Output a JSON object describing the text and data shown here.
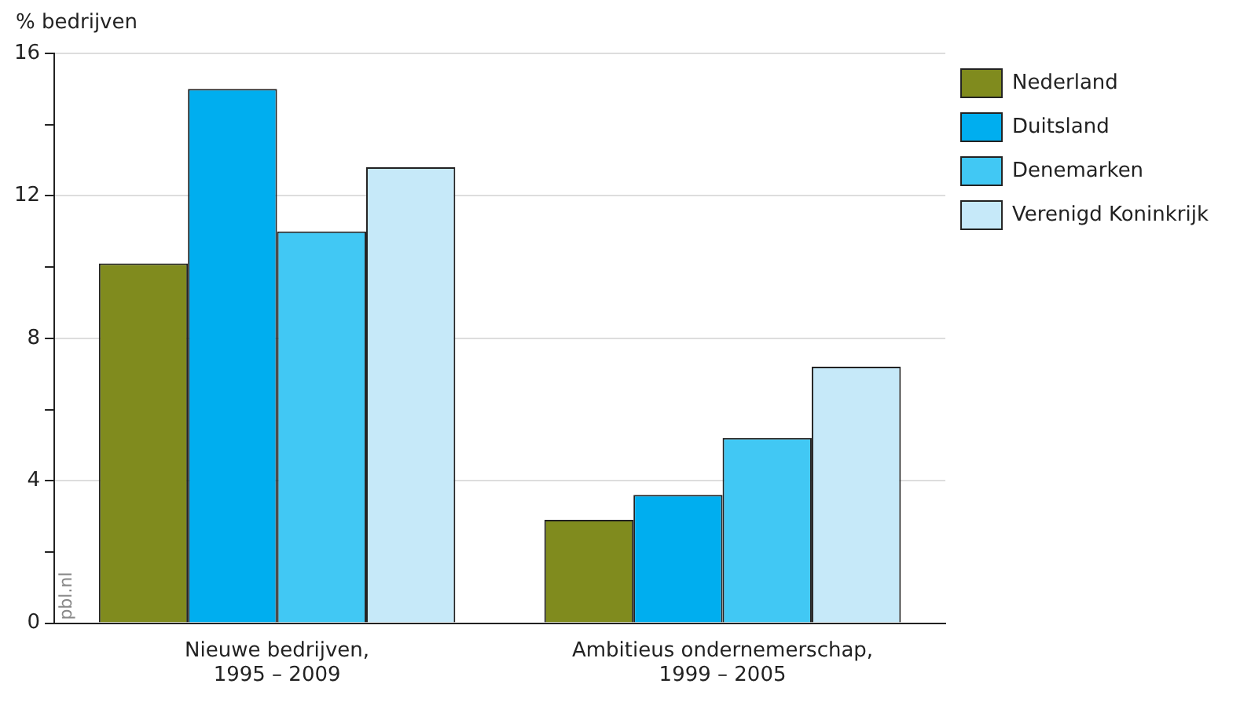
{
  "chart_data": {
    "type": "bar",
    "ylabel": "% bedrijven",
    "categories": [
      "Nieuwe bedrijven,\n1995 – 2009",
      "Ambitieus ondernemerschap,\n1999 – 2005"
    ],
    "series": [
      {
        "name": "Nederland",
        "color": "#808b1e",
        "values": [
          10.1,
          2.9
        ]
      },
      {
        "name": "Duitsland",
        "color": "#00aeef",
        "values": [
          15.0,
          3.6
        ]
      },
      {
        "name": "Denemarken",
        "color": "#41c8f4",
        "values": [
          11.0,
          5.2
        ]
      },
      {
        "name": "Verenigd Koninkrijk",
        "color": "#c6e9f9",
        "values": [
          12.8,
          7.2
        ]
      }
    ],
    "ylim": [
      0,
      16
    ],
    "yticks": [
      0,
      {
        "value": 2,
        "label": null
      },
      4,
      {
        "value": 6,
        "label": null
      },
      8,
      {
        "value": 10,
        "label": null
      },
      12,
      {
        "value": 14,
        "label": null
      },
      16
    ],
    "grid": "y",
    "legend": "top right",
    "annotations": [
      "pbl.nl"
    ]
  }
}
